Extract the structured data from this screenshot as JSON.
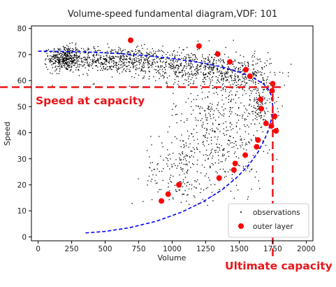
{
  "chart_data": {
    "type": "scatter",
    "title": "Volume-speed fundamental diagram,VDF: 101",
    "xlabel": "Volume",
    "ylabel": "Speed",
    "xlim": [
      -50,
      2050
    ],
    "ylim": [
      -1.5,
      81
    ],
    "xticks": [
      0,
      250,
      500,
      750,
      1000,
      1250,
      1500,
      1750,
      2000
    ],
    "yticks": [
      0,
      10,
      20,
      30,
      40,
      50,
      60,
      70,
      80
    ],
    "grid": false,
    "legend": {
      "position": "bottom-right",
      "entries": [
        {
          "label": "observations",
          "marker": "dot",
          "color": "#000000"
        },
        {
          "label": "outer layer",
          "marker": "circle",
          "color": "#ff0000"
        }
      ]
    },
    "series": [
      {
        "name": "observations",
        "kind": "scatter-cloud",
        "color": "#000000",
        "clusters": [
          {
            "center": [
              200,
              68.5
            ],
            "spread": [
              60,
              2.5
            ],
            "count": 320
          },
          {
            "center": [
              550,
              68
            ],
            "spread": [
              260,
              2.4
            ],
            "count": 650
          },
          {
            "center": [
              1150,
              65
            ],
            "spread": [
              230,
              3.0
            ],
            "count": 450
          },
          {
            "center": [
              1550,
              62
            ],
            "spread": [
              110,
              3.5
            ],
            "count": 200
          },
          {
            "center": [
              1350,
              42
            ],
            "spread": [
              170,
              14
            ],
            "count": 520
          },
          {
            "center": [
              1050,
              25
            ],
            "spread": [
              130,
              7
            ],
            "count": 160
          },
          {
            "center": [
              1650,
              50
            ],
            "spread": [
              60,
              6
            ],
            "count": 120
          }
        ]
      },
      {
        "name": "outer layer",
        "color": "#ff0000",
        "points": [
          [
            690,
            75.5
          ],
          [
            1200,
            73.3
          ],
          [
            1340,
            70.2
          ],
          [
            1430,
            67.2
          ],
          [
            1550,
            64.2
          ],
          [
            1580,
            61.7
          ],
          [
            1750,
            58.8
          ],
          [
            1745,
            56.1
          ],
          [
            1660,
            52.8
          ],
          [
            1665,
            49.2
          ],
          [
            1765,
            46.3
          ],
          [
            1700,
            43.6
          ],
          [
            1740,
            42.6
          ],
          [
            1775,
            40.7
          ],
          [
            1640,
            37.2
          ],
          [
            1630,
            34.6
          ],
          [
            1545,
            31.4
          ],
          [
            1470,
            28.2
          ],
          [
            1460,
            25.7
          ],
          [
            1350,
            22.6
          ],
          [
            1050,
            20.0
          ],
          [
            970,
            16.4
          ],
          [
            920,
            13.8
          ]
        ]
      },
      {
        "name": "fitted curve",
        "kind": "line",
        "style": "dashed",
        "color": "#0000ff",
        "points": [
          [
            0,
            71.3
          ],
          [
            200,
            71.2
          ],
          [
            400,
            70.9
          ],
          [
            600,
            70.4
          ],
          [
            800,
            69.6
          ],
          [
            1000,
            68.5
          ],
          [
            1200,
            67.0
          ],
          [
            1350,
            65.5
          ],
          [
            1500,
            63.3
          ],
          [
            1600,
            61.2
          ],
          [
            1680,
            58.8
          ],
          [
            1720,
            56.5
          ],
          [
            1740,
            54.0
          ],
          [
            1750,
            50.5
          ],
          [
            1745,
            46.5
          ],
          [
            1725,
            42.0
          ],
          [
            1690,
            37.5
          ],
          [
            1640,
            32.5
          ],
          [
            1570,
            27.5
          ],
          [
            1480,
            22.7
          ],
          [
            1370,
            18.0
          ],
          [
            1230,
            13.5
          ],
          [
            1070,
            9.5
          ],
          [
            880,
            6.0
          ],
          [
            680,
            3.5
          ],
          [
            500,
            2.1
          ],
          [
            350,
            1.5
          ]
        ]
      }
    ],
    "annotations": [
      {
        "text": "Speed at capacity",
        "type": "hline",
        "value": 57.5,
        "style": "dashed",
        "color": "#e8161b"
      },
      {
        "text": "Ultimate capacity",
        "type": "vline",
        "value": 1750,
        "style": "dashed",
        "color": "#e8161b"
      }
    ]
  }
}
